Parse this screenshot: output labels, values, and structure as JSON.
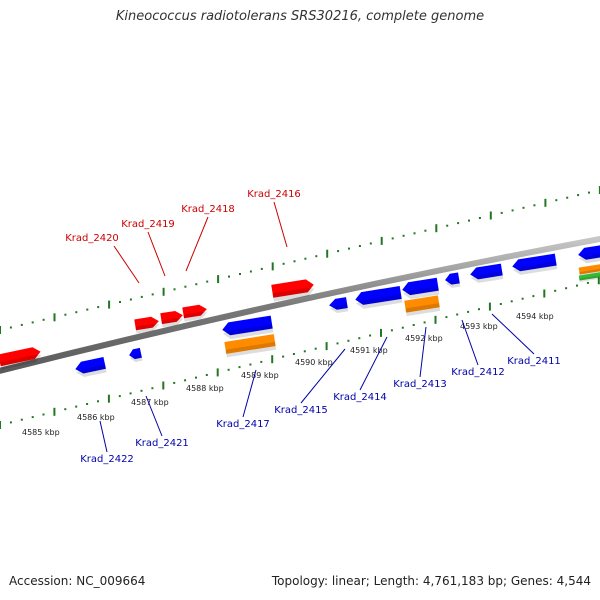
{
  "header": {
    "title": "Kineococcus radiotolerans SRS30216, complete genome"
  },
  "footer": {
    "accession": "Accession: NC_009664",
    "summary": "Topology: linear; Length: 4,761,183 bp; Genes: 4,544"
  },
  "colors": {
    "forward_gene": "#ff0000",
    "reverse_gene": "#0000ff",
    "rna_gene": "#ff8c00",
    "other_feature": "#33bb33",
    "forward_label": "#cc0000",
    "reverse_label": "#0000aa",
    "tick": "#227722",
    "backbone": "#808080"
  },
  "scale": {
    "unit": "kbp",
    "labels": [
      "4585 kbp",
      "4586 kbp",
      "4587 kbp",
      "4588 kbp",
      "4589 kbp",
      "4590 kbp",
      "4591 kbp",
      "4592 kbp",
      "4593 kbp",
      "4594 kbp"
    ]
  },
  "genes": {
    "forward_labeled": [
      "Krad_2420",
      "Krad_2419",
      "Krad_2418",
      "Krad_2416"
    ],
    "reverse_labeled": [
      "Krad_2422",
      "Krad_2421",
      "Krad_2417",
      "Krad_2415",
      "Krad_2414",
      "Krad_2413",
      "Krad_2412",
      "Krad_2411"
    ]
  }
}
